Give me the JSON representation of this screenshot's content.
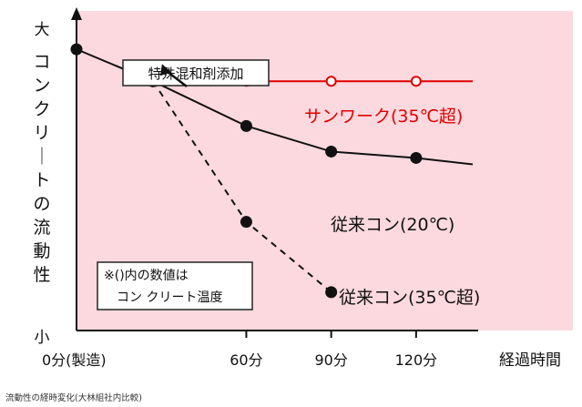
{
  "chart_data": {
    "type": "line",
    "ylabel": "コンクリートの流動性",
    "xlabel": "経過時間",
    "y_top_label": "大",
    "y_bottom_label": "小",
    "categories": [
      "0分(製造)",
      "60分",
      "90分",
      "120分"
    ],
    "x": [
      0,
      60,
      90,
      120
    ],
    "xlim": [
      0,
      140
    ],
    "ylim": [
      0,
      100
    ],
    "grid": false,
    "series": [
      {
        "name": "サンワーク(35℃超)",
        "color": "#e00000",
        "dash": false,
        "marker": "open-circle",
        "x": [
          27,
          60,
          90,
          120,
          140
        ],
        "y": [
          78,
          78,
          78,
          78,
          78
        ],
        "marked": [
          false,
          true,
          true,
          true,
          false
        ]
      },
      {
        "name": "従来コン(20℃)",
        "color": "#111111",
        "dash": false,
        "marker": "filled-circle",
        "x": [
          0,
          27,
          60,
          90,
          120,
          140
        ],
        "y": [
          88,
          78,
          64,
          56,
          54,
          52
        ],
        "marked": [
          true,
          true,
          true,
          true,
          true,
          false
        ]
      },
      {
        "name": "従来コン(35℃超)",
        "color": "#111111",
        "dash": true,
        "marker": "filled-circle",
        "x": [
          27,
          60,
          90
        ],
        "y": [
          78,
          34,
          12
        ],
        "marked": [
          true,
          true,
          true
        ]
      }
    ],
    "annotations": [
      {
        "text": "特殊混和剤添加",
        "target_x": 27,
        "target_y": 78
      }
    ],
    "note_lines": [
      "※()内の数値は",
      "コン クリート温度"
    ]
  },
  "caption": "流動性の経時変化(大林組社内比較)",
  "colors": {
    "plot_background": "#fcd9de",
    "axis": "#111111"
  }
}
